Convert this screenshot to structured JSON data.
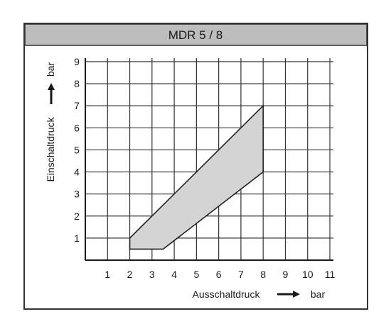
{
  "chart_data": {
    "type": "area",
    "title": "MDR 5 / 8",
    "xlabel": "Ausschaltdruck",
    "xunit": "bar",
    "ylabel": "Einschaltdruck",
    "yunit": "bar",
    "xlim": [
      0,
      11
    ],
    "ylim": [
      0,
      9
    ],
    "x_ticks": [
      1,
      2,
      3,
      4,
      5,
      6,
      7,
      8,
      9,
      10,
      11
    ],
    "y_ticks": [
      1,
      2,
      3,
      4,
      5,
      6,
      7,
      8,
      9
    ],
    "grid": true,
    "region": {
      "points": [
        {
          "x": 2,
          "y": 0.5
        },
        {
          "x": 3.5,
          "y": 0.5
        },
        {
          "x": 8,
          "y": 4
        },
        {
          "x": 8,
          "y": 7
        },
        {
          "x": 2,
          "y": 1
        }
      ]
    },
    "colors": {
      "region_fill": "#d4d4d4",
      "region_stroke": "#222222",
      "grid": "#333333",
      "header_bg": "#bdbdbd",
      "frame": "#333333"
    }
  }
}
